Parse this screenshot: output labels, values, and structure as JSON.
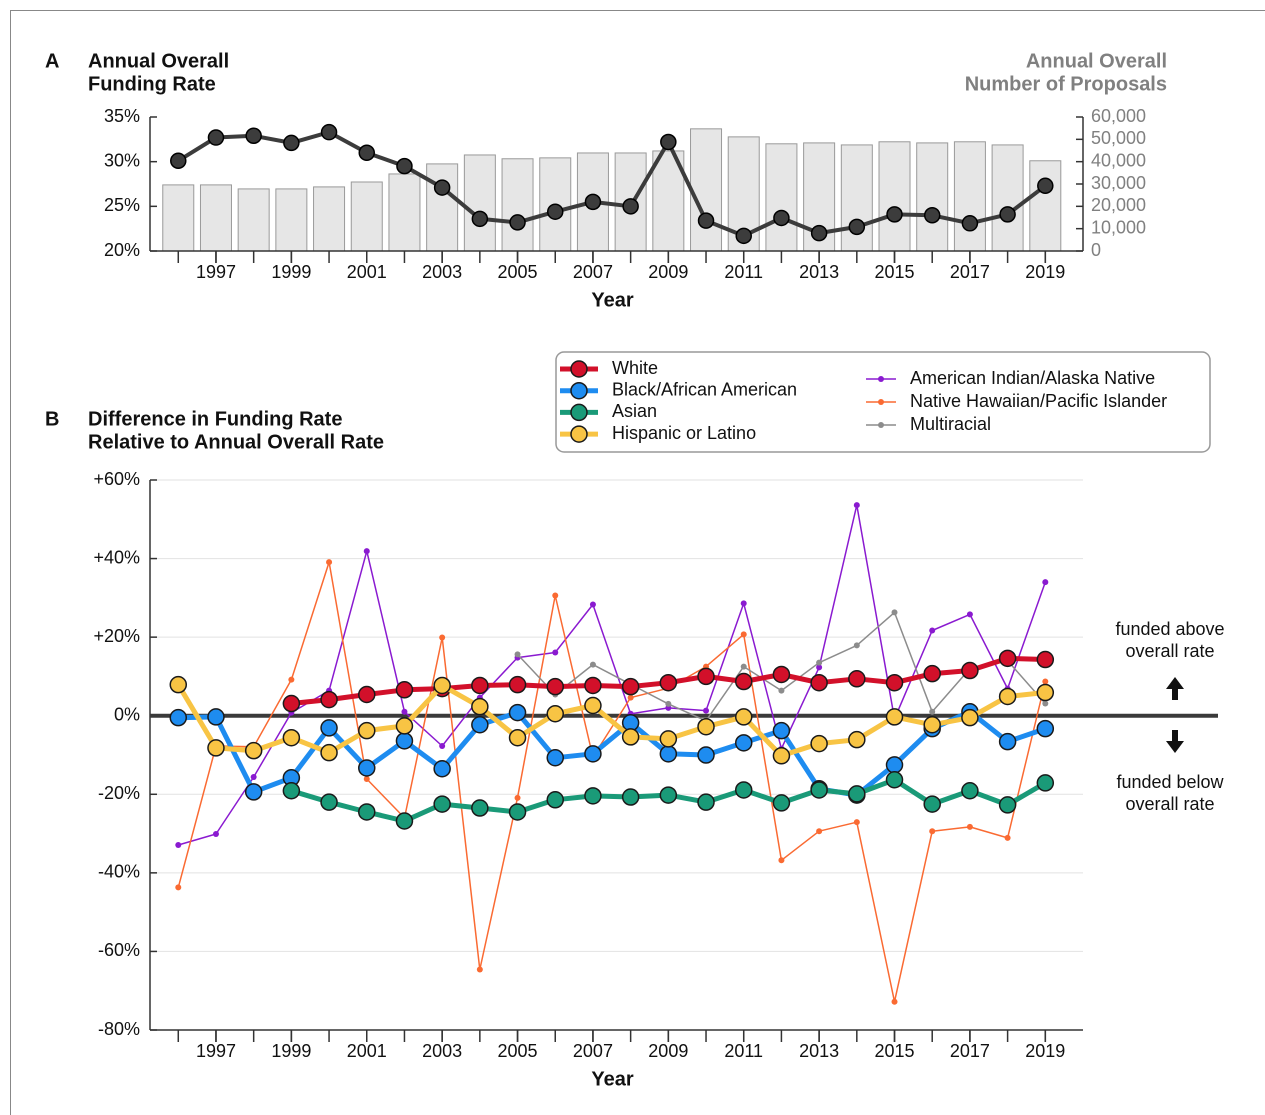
{
  "chart_data": [
    {
      "panel": "A",
      "type": "combo",
      "ylabel": [
        "Annual Overall",
        "Funding Rate"
      ],
      "y2label": [
        "Annual Overall",
        "Number of Proposals"
      ],
      "xlabel": "Year",
      "x": [
        1996,
        1997,
        1998,
        1999,
        2000,
        2001,
        2002,
        2003,
        2004,
        2005,
        2006,
        2007,
        2008,
        2009,
        2010,
        2011,
        2012,
        2013,
        2014,
        2015,
        2016,
        2017,
        2018,
        2019
      ],
      "xlim": [
        1995.25,
        2020
      ],
      "xticks": [
        1997,
        1999,
        2001,
        2003,
        2005,
        2007,
        2009,
        2011,
        2013,
        2015,
        2017,
        2019
      ],
      "ylim": [
        20,
        35
      ],
      "yticks": [
        {
          "value": 20,
          "label": "20%"
        },
        {
          "value": 25,
          "label": "25%"
        },
        {
          "value": 30,
          "label": "30%"
        },
        {
          "value": 35,
          "label": "35%"
        }
      ],
      "y2lim": [
        0,
        60000
      ],
      "y2ticks": [
        0,
        {
          "value": 10000,
          "label": "10,000"
        },
        {
          "value": 20000,
          "label": "20,000"
        },
        {
          "value": 30000,
          "label": "30,000"
        },
        {
          "value": 40000,
          "label": "40,000"
        },
        {
          "value": 50000,
          "label": "50,000"
        },
        {
          "value": 60000,
          "label": "60,000"
        }
      ],
      "series": [
        {
          "type": "bar",
          "axis": "y2",
          "color": "#e6e6e6",
          "values": [
            29600,
            29600,
            27800,
            27800,
            28700,
            30900,
            34500,
            39000,
            43000,
            41300,
            41700,
            43900,
            43900,
            44800,
            54700,
            51100,
            48000,
            48400,
            47500,
            48900,
            48400,
            48900,
            47500,
            40400
          ]
        },
        {
          "type": "line",
          "color": "#3c3c3c",
          "values": [
            30.1,
            32.7,
            32.9,
            32.1,
            33.3,
            31.0,
            29.5,
            27.1,
            23.6,
            23.2,
            24.4,
            25.5,
            25.0,
            32.2,
            23.4,
            21.7,
            23.7,
            22.0,
            22.7,
            24.1,
            24.0,
            23.1,
            24.1,
            27.3
          ]
        }
      ]
    },
    {
      "panel": "B",
      "type": "line",
      "ylabel": [
        "Difference in Funding Rate",
        "Relative to Annual Overall Rate"
      ],
      "xlabel": "Year",
      "x": [
        1996,
        1997,
        1998,
        1999,
        2000,
        2001,
        2002,
        2003,
        2004,
        2005,
        2006,
        2007,
        2008,
        2009,
        2010,
        2011,
        2012,
        2013,
        2014,
        2015,
        2016,
        2017,
        2018,
        2019
      ],
      "xlim": [
        1995.25,
        2020
      ],
      "xticks": [
        1997,
        1999,
        2001,
        2003,
        2005,
        2007,
        2009,
        2011,
        2013,
        2015,
        2017,
        2019
      ],
      "ylim": [
        -80,
        60
      ],
      "yticks": [
        {
          "value": -80,
          "label": "-80%"
        },
        {
          "value": -60,
          "label": "-60%"
        },
        {
          "value": -40,
          "label": "-40%"
        },
        {
          "value": -20,
          "label": "-20%"
        },
        {
          "value": 0,
          "label": "0%"
        },
        {
          "value": 20,
          "label": "+20%"
        },
        {
          "value": 40,
          "label": "+40%"
        },
        {
          "value": 60,
          "label": "+60%"
        }
      ],
      "grid": true,
      "zero_line": true,
      "legend": "top-right",
      "annotations": [
        [
          "funded above",
          "overall rate"
        ],
        [
          "funded below",
          "overall rate"
        ]
      ],
      "series": [
        {
          "name": "White",
          "color": "#d2102a",
          "marker": "large",
          "values": [
            null,
            null,
            null,
            3.1,
            4.1,
            5.4,
            6.6,
            6.9,
            7.7,
            7.9,
            7.4,
            7.7,
            7.4,
            8.4,
            10.0,
            8.7,
            10.5,
            8.4,
            9.4,
            8.4,
            10.7,
            11.5,
            14.6,
            14.3
          ]
        },
        {
          "name": "Black/African American",
          "color": "#1e8cf0",
          "marker": "large",
          "values": [
            -0.5,
            -0.3,
            -19.4,
            -15.8,
            -3.1,
            -13.3,
            -6.4,
            -13.5,
            -2.3,
            0.8,
            -10.7,
            -9.7,
            -1.8,
            -9.7,
            -10.0,
            -6.9,
            -3.8,
            -18.6,
            -20.2,
            -12.5,
            -3.3,
            1.0,
            -6.6,
            -3.3
          ]
        },
        {
          "name": "Asian",
          "color": "#1a9a78",
          "marker": "large",
          "values": [
            null,
            null,
            null,
            -19.1,
            -22.0,
            -24.5,
            -26.8,
            -22.5,
            -23.5,
            -24.5,
            -21.4,
            -20.4,
            -20.7,
            -20.2,
            -22.0,
            -18.9,
            -22.2,
            -18.9,
            -19.9,
            -16.3,
            -22.5,
            -19.1,
            -22.7,
            -17.1
          ]
        },
        {
          "name": "Hispanic or Latino",
          "color": "#f8c444",
          "marker": "large",
          "values": [
            7.9,
            -8.2,
            -8.9,
            -5.6,
            -9.4,
            -3.8,
            -2.6,
            7.7,
            2.3,
            -5.6,
            0.5,
            2.6,
            -5.4,
            -5.9,
            -2.8,
            -0.3,
            -10.2,
            -7.1,
            -6.1,
            -0.3,
            -2.3,
            -0.5,
            4.9,
            5.9
          ]
        },
        {
          "name": "American Indian/Alaska Native",
          "color": "#8a1ad0",
          "marker": "small",
          "values": [
            -32.9,
            -30.1,
            -15.6,
            0.8,
            6.4,
            41.9,
            1.0,
            -7.7,
            4.6,
            14.8,
            16.1,
            28.3,
            0.5,
            2.0,
            1.3,
            28.6,
            -8.4,
            12.3,
            53.6,
            -0.8,
            21.7,
            25.8,
            6.9,
            34.0
          ]
        },
        {
          "name": "Native Hawaiian/Pacific Islander",
          "color": "#fa6a32",
          "marker": "small",
          "values": [
            -43.7,
            -7.7,
            -7.9,
            9.2,
            39.1,
            -16.1,
            -26.0,
            19.9,
            -64.6,
            -20.9,
            30.6,
            -10.5,
            4.6,
            7.0,
            12.5,
            20.7,
            -36.8,
            -29.4,
            -27.1,
            -72.8,
            -29.4,
            -28.3,
            -31.1,
            8.7
          ]
        },
        {
          "name": "Multiracial",
          "color": "#8c8c8c",
          "marker": "small",
          "values": [
            null,
            null,
            null,
            null,
            null,
            null,
            null,
            null,
            null,
            15.6,
            5.4,
            13.0,
            8.0,
            3.0,
            -1.3,
            12.5,
            6.4,
            13.5,
            17.9,
            26.3,
            1.0,
            12.0,
            14.0,
            3.1
          ]
        }
      ]
    }
  ]
}
